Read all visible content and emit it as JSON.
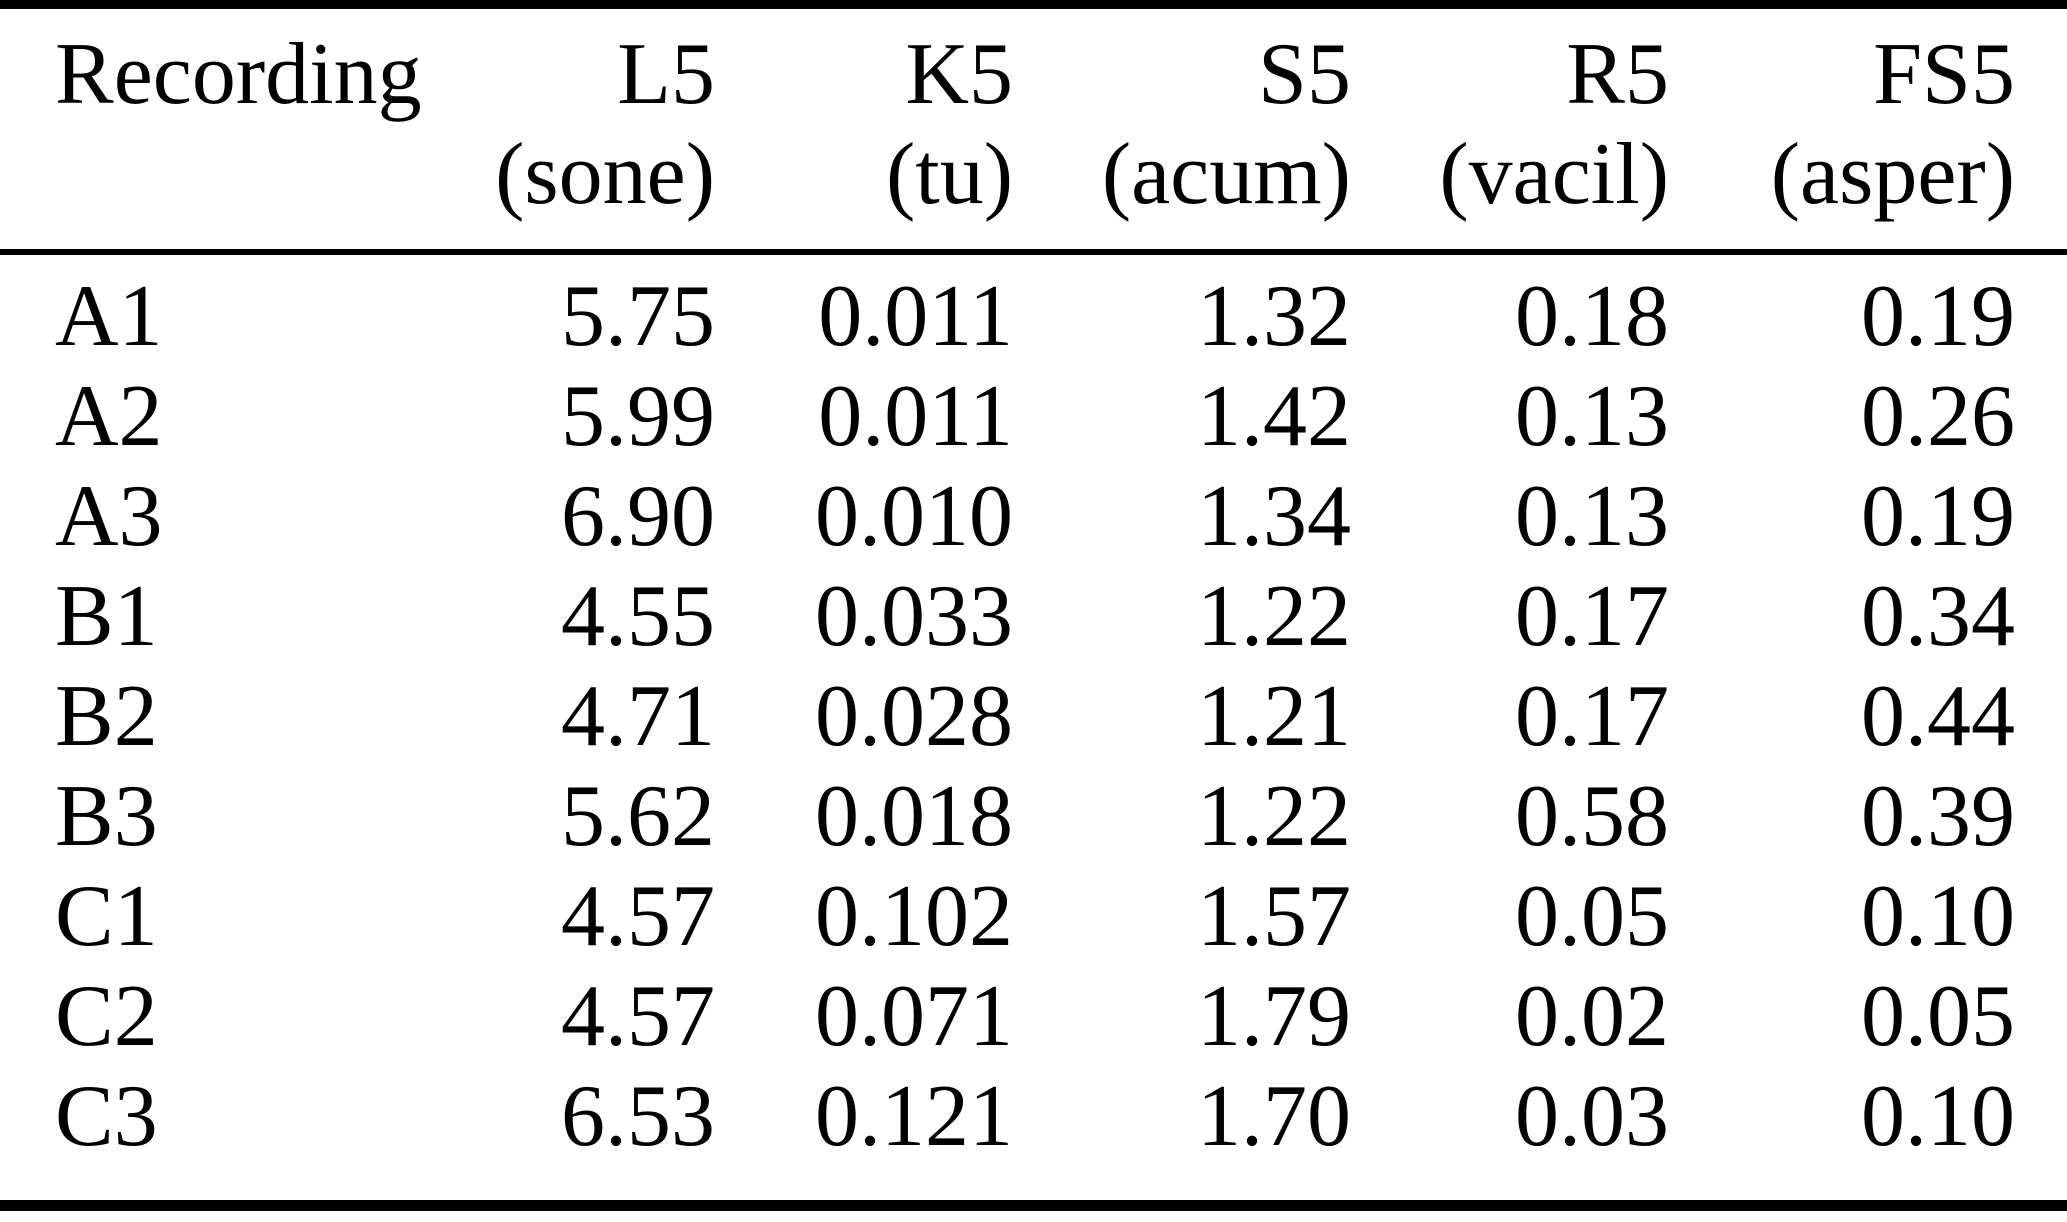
{
  "table": {
    "columns": [
      {
        "label": "Recording",
        "unit": ""
      },
      {
        "label": "L5",
        "unit": "(sone)"
      },
      {
        "label": "K5",
        "unit": "(tu)"
      },
      {
        "label": "S5",
        "unit": "(acum)"
      },
      {
        "label": "R5",
        "unit": "(vacil)"
      },
      {
        "label": "FS5",
        "unit": "(asper)"
      }
    ],
    "rows": [
      {
        "cells": [
          "A1",
          "5.75",
          "0.011",
          "1.32",
          "0.18",
          "0.19"
        ]
      },
      {
        "cells": [
          "A2",
          "5.99",
          "0.011",
          "1.42",
          "0.13",
          "0.26"
        ]
      },
      {
        "cells": [
          "A3",
          "6.90",
          "0.010",
          "1.34",
          "0.13",
          "0.19"
        ]
      },
      {
        "cells": [
          "B1",
          "4.55",
          "0.033",
          "1.22",
          "0.17",
          "0.34"
        ]
      },
      {
        "cells": [
          "B2",
          "4.71",
          "0.028",
          "1.21",
          "0.17",
          "0.44"
        ]
      },
      {
        "cells": [
          "B3",
          "5.62",
          "0.018",
          "1.22",
          "0.58",
          "0.39"
        ]
      },
      {
        "cells": [
          "C1",
          "4.57",
          "0.102",
          "1.57",
          "0.05",
          "0.10"
        ]
      },
      {
        "cells": [
          "C2",
          "4.57",
          "0.071",
          "1.79",
          "0.02",
          "0.05"
        ]
      },
      {
        "cells": [
          "C3",
          "6.53",
          "0.121",
          "1.70",
          "0.03",
          "0.10"
        ]
      }
    ]
  }
}
